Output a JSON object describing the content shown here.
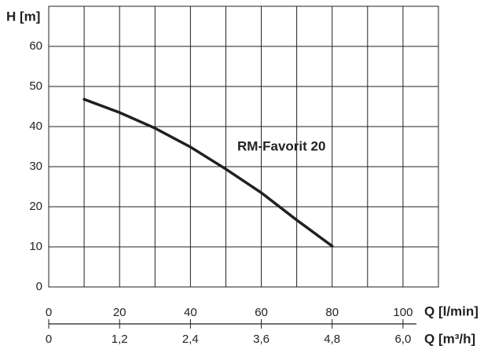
{
  "chart_data": {
    "type": "line",
    "y_label": "H [m]",
    "x_label": "Q [l/min]",
    "x2_label": "Q [m³/h]",
    "series": [
      {
        "name": "RM-Favorit 20",
        "color": "#231f20",
        "x": [
          10,
          20,
          30,
          40,
          50,
          60,
          70,
          80
        ],
        "values": [
          46.8,
          43.5,
          39.6,
          34.9,
          29.4,
          23.5,
          16.7,
          10.2
        ]
      }
    ],
    "xlim": [
      0,
      110
    ],
    "xticks": [
      0,
      20,
      40,
      60,
      80,
      100
    ],
    "xminor_ticks": [
      10,
      30,
      50,
      70,
      90,
      110
    ],
    "x2lim": [
      0,
      6.6
    ],
    "x2ticks": [
      0,
      {
        "value": 1.2,
        "label": "1,2"
      },
      {
        "value": 2.4,
        "label": "2,4"
      },
      {
        "value": 3.6,
        "label": "3,6"
      },
      {
        "value": 4.8,
        "label": "4,8"
      },
      {
        "value": 6.0,
        "label": "6,0"
      }
    ],
    "ylim": [
      0,
      70
    ],
    "yticks": [
      0,
      10,
      20,
      30,
      40,
      50,
      60
    ],
    "grid": true
  }
}
